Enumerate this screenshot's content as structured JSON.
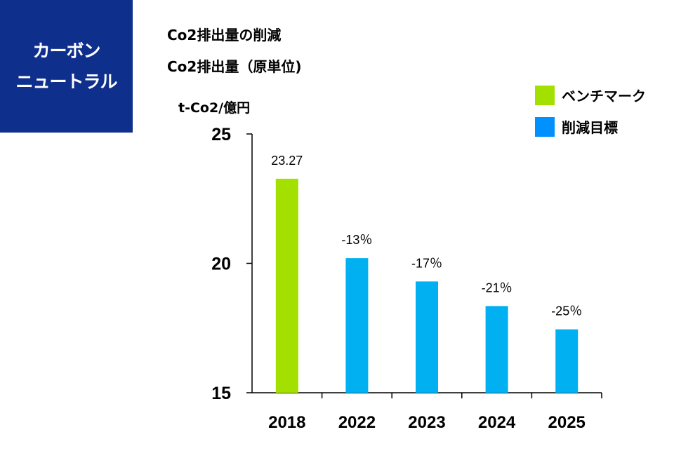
{
  "badge": {
    "line1": "カーボン",
    "line2": "ニュートラル"
  },
  "titles": {
    "line1": "Co2排出量の削減",
    "line2": "Co2排出量（原単位)"
  },
  "colors": {
    "badge_bg": "#0e2f8c",
    "benchmark": "#a3e000",
    "target": "#00b0f0",
    "legend_target": "#0090ff"
  },
  "chart_data": {
    "type": "bar",
    "title": "Co2排出量の削減",
    "subtitle": "Co2排出量（原単位)",
    "ylabel": "t-Co2/億円",
    "xlabel": "",
    "ylim": [
      15,
      25
    ],
    "yticks": [
      15,
      20,
      25
    ],
    "categories": [
      "2018",
      "2022",
      "2023",
      "2024",
      "2025"
    ],
    "values": [
      23.27,
      20.2,
      19.3,
      18.35,
      17.45
    ],
    "series_type": [
      "benchmark",
      "target",
      "target",
      "target",
      "target"
    ],
    "data_labels": [
      "23.27",
      "-13％",
      "-17％",
      "-21％",
      "-25％"
    ],
    "legend": [
      {
        "name": "ベンチマーク",
        "color": "#a3e000"
      },
      {
        "name": "削減目標",
        "color": "#00b0f0"
      }
    ],
    "legend_position": "top-right",
    "grid": false
  }
}
